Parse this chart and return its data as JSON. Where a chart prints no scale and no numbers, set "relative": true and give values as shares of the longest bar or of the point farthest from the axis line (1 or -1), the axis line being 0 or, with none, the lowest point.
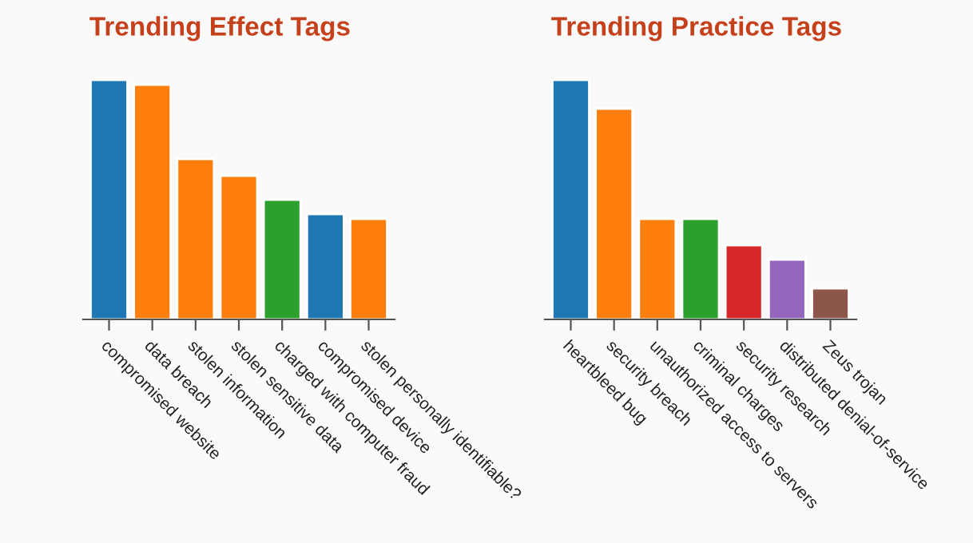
{
  "chart_data": [
    {
      "type": "bar",
      "title": "Trending Effect Tags",
      "relative": true,
      "categories": [
        "compromised website",
        "data breach",
        "stolen information",
        "stolen sensitive data",
        "charged with computer fraud",
        "compromised device",
        "stolen personally identifiable?"
      ],
      "values": [
        1,
        0.98,
        0.67,
        0.6,
        0.5,
        0.44,
        0.42
      ],
      "colors": [
        "#1f77b4",
        "#ff7f0e",
        "#ff7f0e",
        "#ff7f0e",
        "#2ca02c",
        "#1f77b4",
        "#ff7f0e"
      ]
    },
    {
      "type": "bar",
      "title": "Trending Practice Tags",
      "relative": true,
      "categories": [
        "heartbleed bug",
        "security breach",
        "unauthorized access to servers",
        "criminal charges",
        "security research",
        "distributed denial-of-service",
        "Zeus trojan"
      ],
      "values": [
        1,
        0.88,
        0.42,
        0.42,
        0.31,
        0.25,
        0.13
      ],
      "colors": [
        "#1f77b4",
        "#ff7f0e",
        "#ff7f0e",
        "#2ca02c",
        "#d62728",
        "#9467bd",
        "#8c564b"
      ]
    }
  ]
}
